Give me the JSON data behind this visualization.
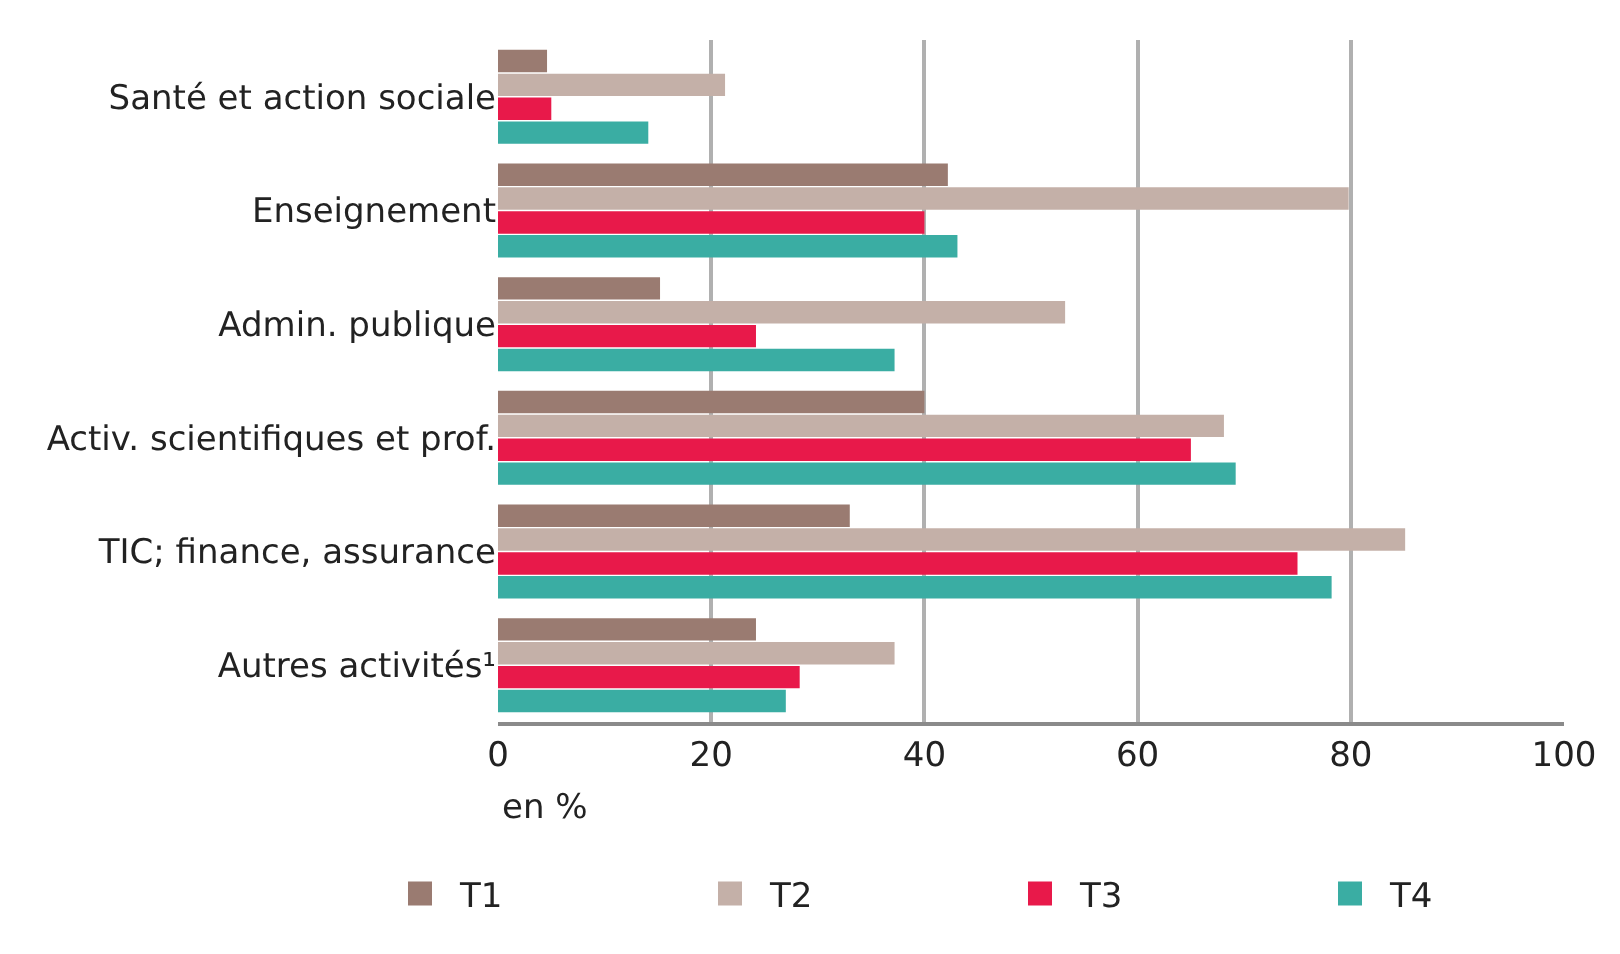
{
  "chart_data": {
    "type": "bar",
    "orientation": "horizontal",
    "xlabel": "en %",
    "categories": [
      "Santé et action sociale",
      "Enseignement",
      "Admin. publique",
      "Activ. scientifiques et prof.",
      "TIC; finance, assurance",
      "Autres activités¹"
    ],
    "series": [
      {
        "name": "T1",
        "color": "#9a7b71",
        "values": [
          4.6,
          42.2,
          15.2,
          40,
          33,
          24.2
        ]
      },
      {
        "name": "T2",
        "color": "#c4b0a8",
        "values": [
          21.3,
          79.8,
          53.2,
          68.1,
          85.1,
          37.2
        ]
      },
      {
        "name": "T3",
        "color": "#e8194a",
        "values": [
          5,
          40,
          24.2,
          65,
          75,
          28.3
        ]
      },
      {
        "name": "T4",
        "color": "#3aada3",
        "values": [
          14.1,
          43.1,
          37.2,
          69.2,
          78.2,
          27
        ]
      }
    ],
    "xlim": [
      0,
      100
    ],
    "xticks": [
      0,
      20,
      40,
      60,
      80,
      100
    ],
    "grid": "x",
    "legend": "bottom"
  }
}
